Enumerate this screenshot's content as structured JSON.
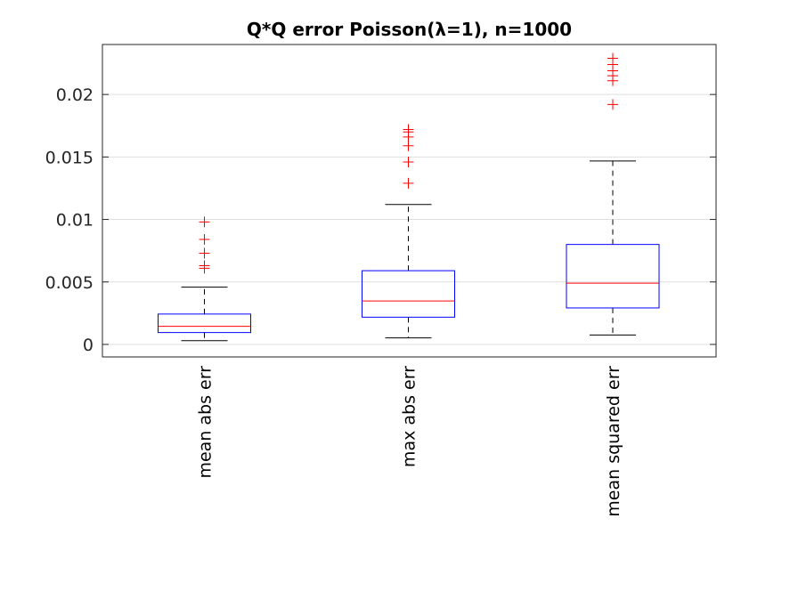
{
  "chart_data": {
    "type": "boxplot",
    "title": "Q*Q error Poisson(λ=1), n=1000",
    "xlabel": "",
    "ylabel": "",
    "ylim": [
      -0.001,
      0.024
    ],
    "yticks": [
      0,
      0.005,
      0.01,
      0.015,
      0.02
    ],
    "ytick_labels": [
      "0",
      "0.005",
      "0.01",
      "0.015",
      "0.02"
    ],
    "grid": true,
    "categories": [
      "mean abs err",
      "max abs err",
      "mean squared err"
    ],
    "boxes": [
      {
        "label": "mean abs err",
        "whisker_low": 0.0003,
        "q1": 0.00095,
        "median": 0.00145,
        "q3": 0.00243,
        "whisker_high": 0.00458,
        "outliers": [
          0.0061,
          0.0063,
          0.0073,
          0.0084,
          0.0098
        ]
      },
      {
        "label": "max abs err",
        "whisker_low": 0.00052,
        "q1": 0.00218,
        "median": 0.00348,
        "q3": 0.0059,
        "whisker_high": 0.0112,
        "outliers": [
          0.0129,
          0.0146,
          0.0159,
          0.0166,
          0.017,
          0.0172
        ]
      },
      {
        "label": "mean squared err",
        "whisker_low": 0.00075,
        "q1": 0.00292,
        "median": 0.0049,
        "q3": 0.008,
        "whisker_high": 0.01468,
        "outliers": [
          0.0192,
          0.0211,
          0.0215,
          0.0219,
          0.0224,
          0.0229
        ]
      }
    ],
    "colors": {
      "box": "#0000ff",
      "median": "#ff0000",
      "whisker": "#000000",
      "outlier": "#ff0000",
      "grid": "#dfdfdf",
      "axis": "#262626"
    }
  }
}
